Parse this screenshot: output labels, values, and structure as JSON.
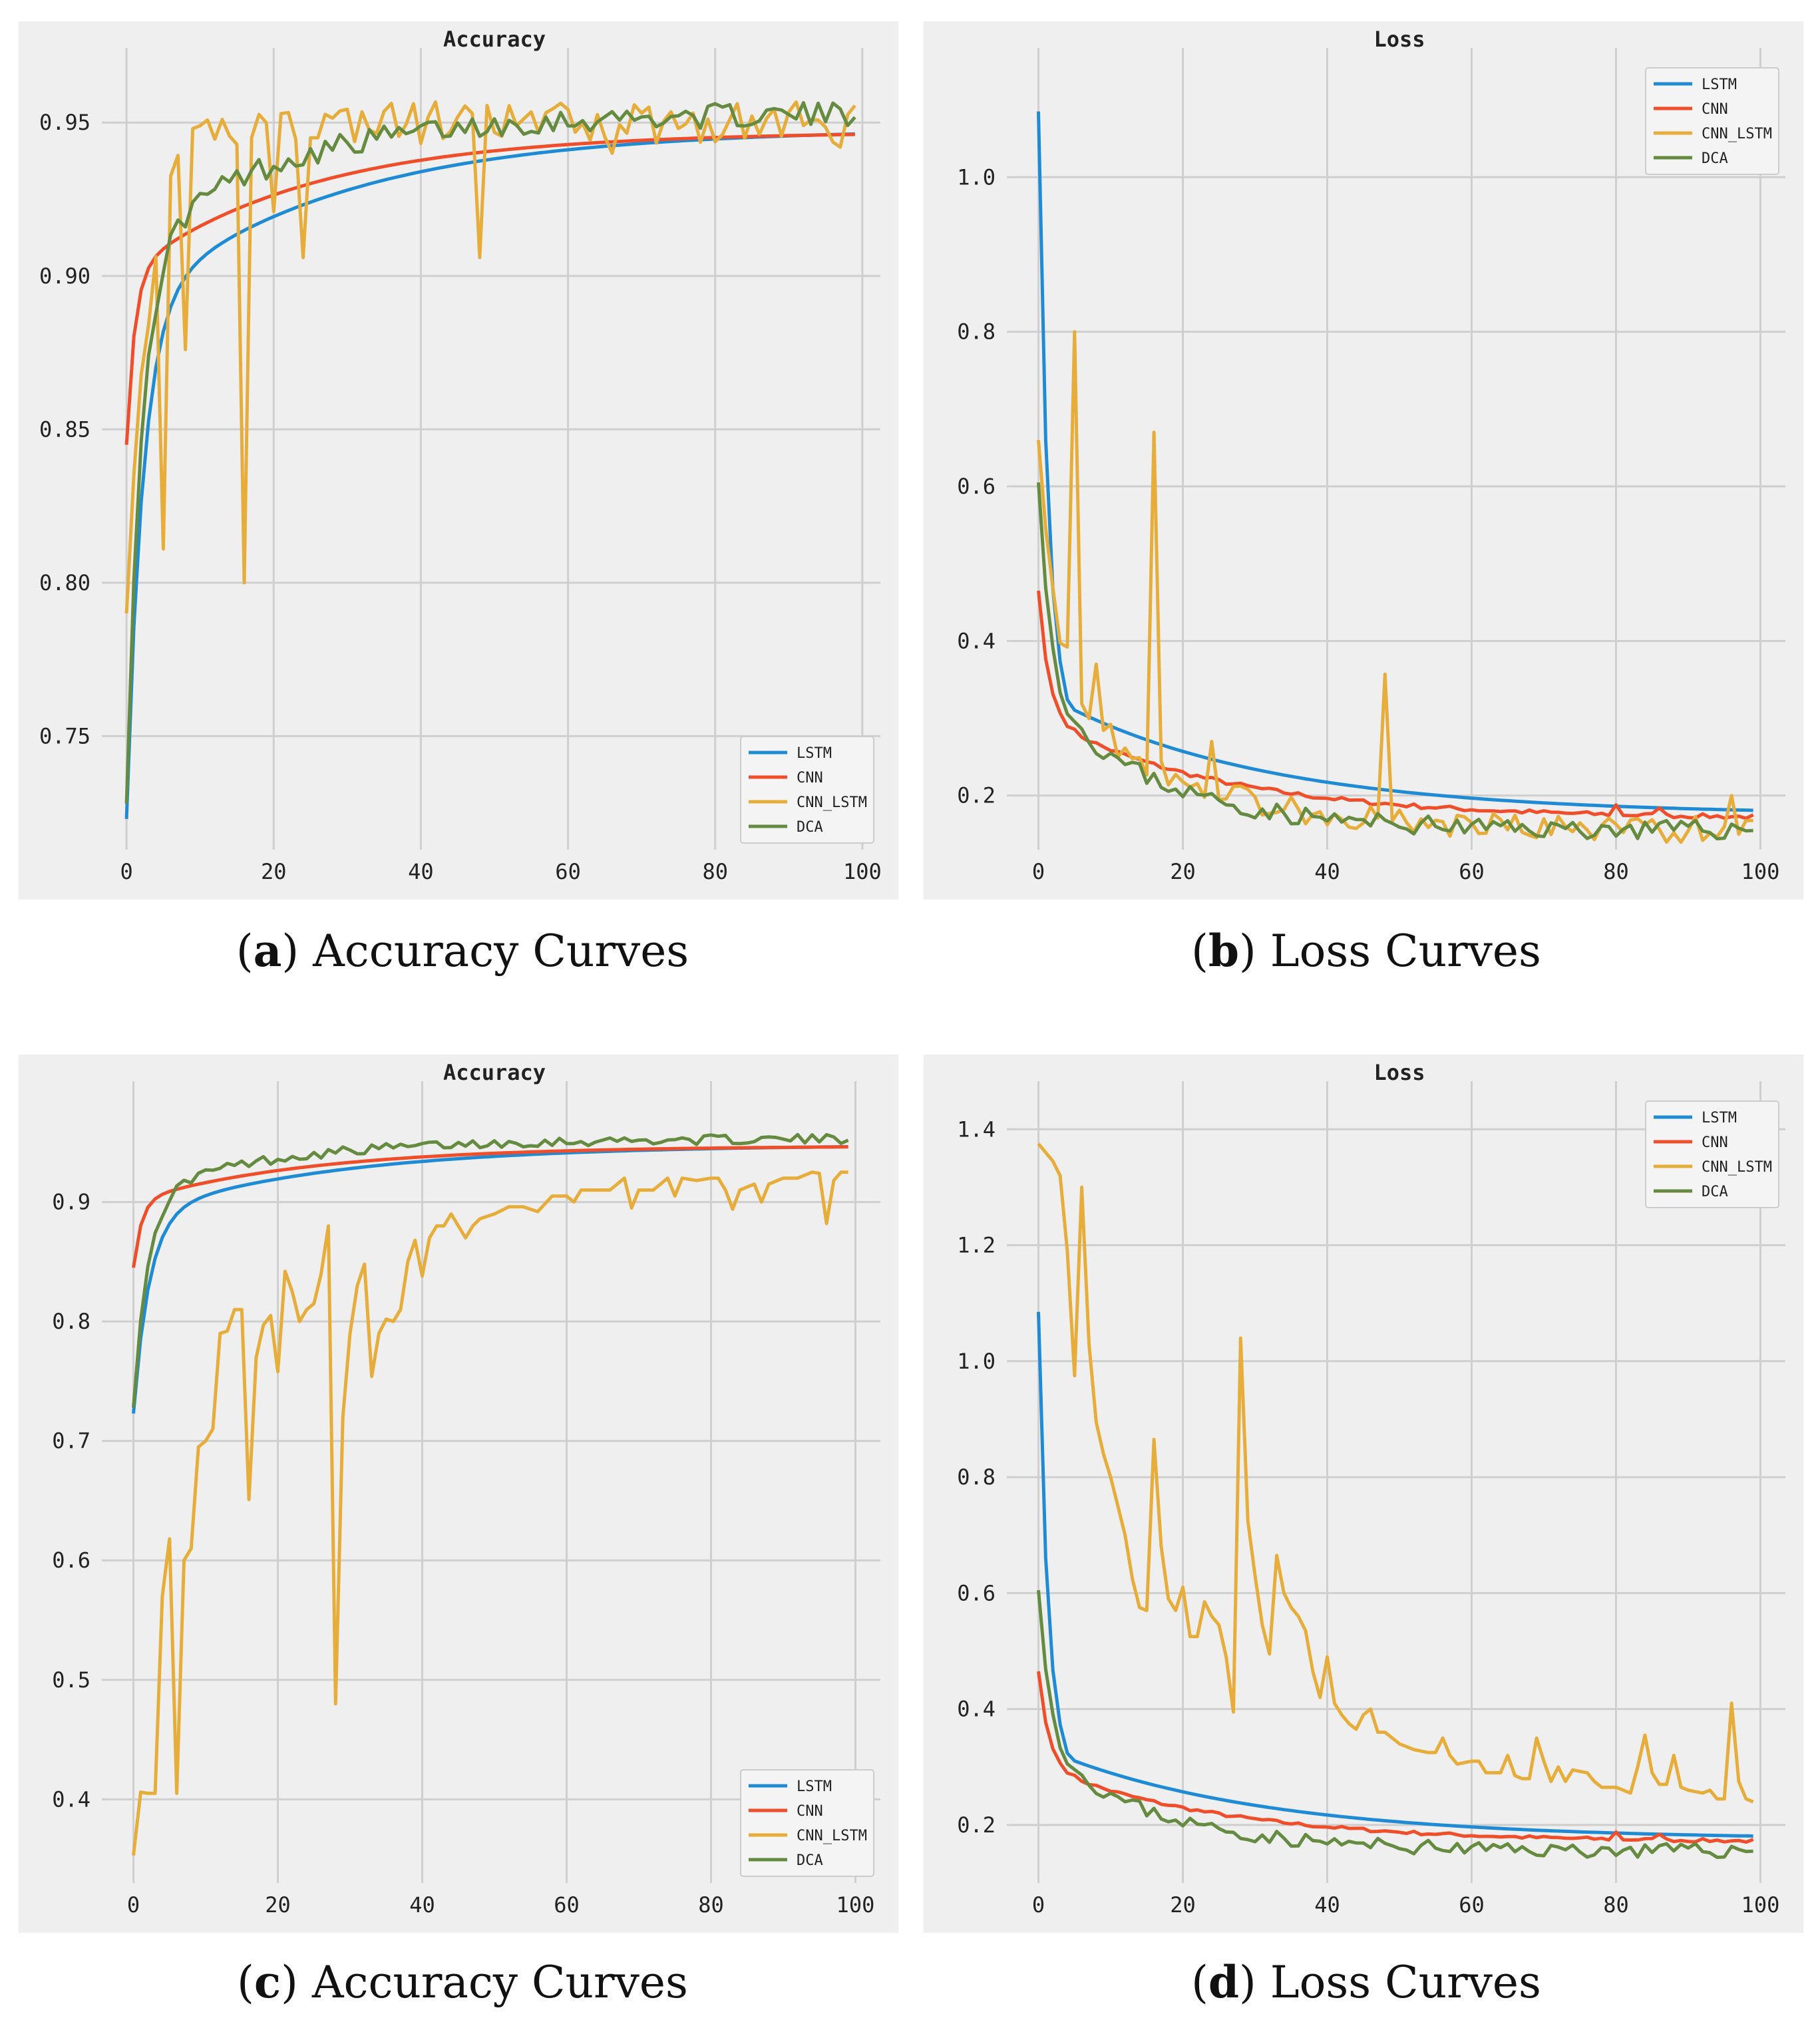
{
  "colors": {
    "LSTM": "#1f8bd4",
    "CNN": "#f04e2b",
    "CNN_LSTM": "#e6ad3a",
    "DCA": "#648b3f",
    "axes_bg": "#efefef",
    "grid": "#cfcfcf"
  },
  "chart_data": [
    {
      "id": "a",
      "type": "line",
      "title": "Accuracy",
      "caption_letter": "a",
      "caption_text": "Accuracy Curves",
      "xlim": [
        -2,
        102
      ],
      "ylim": [
        0.713,
        0.97
      ],
      "xticks": [
        0,
        20,
        40,
        60,
        80,
        100
      ],
      "yticks": [
        0.75,
        0.8,
        0.85,
        0.9,
        0.95
      ],
      "ytick_labels": [
        "0.75",
        "0.80",
        "0.85",
        "0.90",
        "0.95"
      ],
      "legend": "lower-right",
      "series": [
        {
          "name": "LSTM",
          "gen": "acc_lstm"
        },
        {
          "name": "CNN",
          "gen": "acc_cnn"
        },
        {
          "name": "CNN_LSTM",
          "gen": "acc_cnnlstm_a"
        },
        {
          "name": "DCA",
          "gen": "acc_dca"
        }
      ]
    },
    {
      "id": "b",
      "type": "line",
      "title": "Loss",
      "caption_letter": "b",
      "caption_text": "Loss Curves",
      "xlim": [
        -3,
        103
      ],
      "ylim": [
        0.13,
        1.15
      ],
      "xticks": [
        0,
        20,
        40,
        60,
        80,
        100
      ],
      "yticks": [
        0.2,
        0.4,
        0.6,
        0.8,
        1.0
      ],
      "ytick_labels": [
        "0.2",
        "0.4",
        "0.6",
        "0.8",
        "1.0"
      ],
      "legend": "upper-right",
      "series": [
        {
          "name": "LSTM",
          "gen": "loss_lstm"
        },
        {
          "name": "CNN",
          "gen": "loss_cnn"
        },
        {
          "name": "CNN_LSTM",
          "gen": "loss_cnnlstm_b"
        },
        {
          "name": "DCA",
          "gen": "loss_dca"
        }
      ]
    },
    {
      "id": "c",
      "type": "line",
      "title": "Accuracy",
      "caption_letter": "c",
      "caption_text": "Accuracy Curves",
      "xlim": [
        -3,
        103
      ],
      "ylim": [
        0.33,
        0.99
      ],
      "xticks": [
        0,
        20,
        40,
        60,
        80,
        100
      ],
      "yticks": [
        0.4,
        0.5,
        0.6,
        0.7,
        0.8,
        0.9
      ],
      "ytick_labels": [
        "0.4",
        "0.5",
        "0.6",
        "0.7",
        "0.8",
        "0.9"
      ],
      "legend": "lower-right",
      "series": [
        {
          "name": "LSTM",
          "gen": "acc_lstm"
        },
        {
          "name": "CNN",
          "gen": "acc_cnn"
        },
        {
          "name": "CNN_LSTM",
          "gen": "acc_cnnlstm_c"
        },
        {
          "name": "DCA",
          "gen": "acc_dca"
        }
      ]
    },
    {
      "id": "d",
      "type": "line",
      "title": "Loss",
      "caption_letter": "d",
      "caption_text": "Loss Curves",
      "xlim": [
        -3,
        103
      ],
      "ylim": [
        0.1,
        1.46
      ],
      "xticks": [
        0,
        20,
        40,
        60,
        80,
        100
      ],
      "yticks": [
        0.2,
        0.4,
        0.6,
        0.8,
        1.0,
        1.2,
        1.4
      ],
      "ytick_labels": [
        "0.2",
        "0.4",
        "0.6",
        "0.8",
        "1.0",
        "1.2",
        "1.4"
      ],
      "legend": "upper-right",
      "series": [
        {
          "name": "LSTM",
          "gen": "loss_lstm"
        },
        {
          "name": "CNN",
          "gen": "loss_cnn"
        },
        {
          "name": "CNN_LSTM",
          "gen": "loss_cnnlstm_d"
        },
        {
          "name": "DCA",
          "gen": "loss_dca"
        }
      ]
    }
  ]
}
